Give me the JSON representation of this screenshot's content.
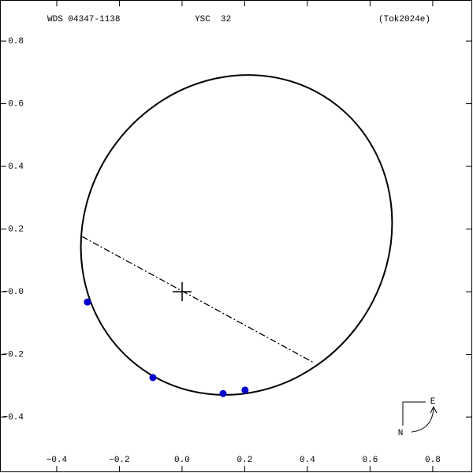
{
  "chart_data": {
    "type": "scatter",
    "title": "WDS 04347-1138",
    "subtitle": "YSC  32",
    "annotation": "(Tok2024e)",
    "compass": {
      "east": "E",
      "north": "N"
    },
    "x": [
      -0.302,
      -0.093,
      0.131,
      0.201
    ],
    "series": [
      {
        "color": "#0000cc",
        "values": [
          -0.033,
          -0.274,
          -0.325,
          -0.314
        ]
      }
    ],
    "xlim": [
      -0.581,
      0.926
    ],
    "ylim": [
      -0.576,
      0.931
    ],
    "xticks": [
      {
        "value": -0.4,
        "label": "−0.4"
      },
      {
        "value": -0.2,
        "label": "−0.2"
      },
      {
        "value": 0,
        "label": "0.0"
      },
      0.2,
      0.4,
      0.6,
      0.8
    ],
    "yticks": [
      {
        "value": -0.4,
        "label": "−0.4"
      },
      {
        "value": -0.2,
        "label": "−0.2"
      },
      {
        "value": 0,
        "label": "−0.0"
      },
      0.2,
      0.4,
      0.6,
      0.8
    ]
  }
}
